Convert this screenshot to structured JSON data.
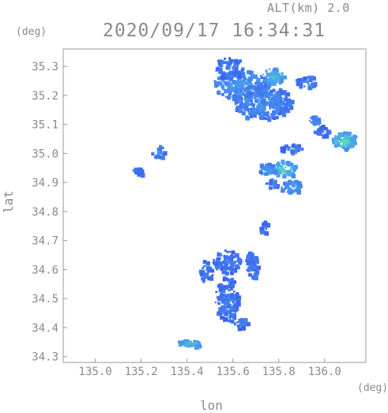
{
  "header": {
    "altitude": "ALT(km) 2.0",
    "timestamp": "2020/09/17 16:34:31"
  },
  "axes": {
    "y_unit": "(deg)",
    "x_unit": "(deg)",
    "xlabel": "lon",
    "ylabel": "lat"
  },
  "chart_data": {
    "type": "heatmap",
    "xlabel": "lon",
    "ylabel": "lat",
    "xlim": [
      134.86,
      136.18
    ],
    "ylim": [
      34.28,
      35.36
    ],
    "x_ticks": [
      "135.0",
      "135.2",
      "135.4",
      "135.6",
      "135.8",
      "136.0"
    ],
    "y_ticks": [
      "34.3",
      "34.4",
      "34.5",
      "34.6",
      "34.7",
      "34.8",
      "34.9",
      "35.0",
      "35.1",
      "35.2",
      "35.3"
    ],
    "colors": {
      "low": "#3a5cf0",
      "mid": "#4aa0f0",
      "high": "#5cf0a0"
    },
    "regions": [
      {
        "lon": 135.63,
        "lat": 35.24,
        "rlon": 0.12,
        "rlat": 0.05,
        "level": 0.4
      },
      {
        "lon": 135.72,
        "lat": 35.18,
        "rlon": 0.13,
        "rlat": 0.06,
        "level": 0.3
      },
      {
        "lon": 135.58,
        "lat": 35.3,
        "rlon": 0.06,
        "rlat": 0.04,
        "level": 0.2
      },
      {
        "lon": 135.77,
        "lat": 35.27,
        "rlon": 0.05,
        "rlat": 0.03,
        "level": 0.6
      },
      {
        "lon": 135.92,
        "lat": 35.25,
        "rlon": 0.05,
        "rlat": 0.02,
        "level": 0.3
      },
      {
        "lon": 136.08,
        "lat": 35.05,
        "rlon": 0.06,
        "rlat": 0.03,
        "level": 0.7
      },
      {
        "lon": 135.98,
        "lat": 35.08,
        "rlon": 0.03,
        "rlat": 0.02,
        "level": 0.2
      },
      {
        "lon": 135.95,
        "lat": 35.12,
        "rlon": 0.02,
        "rlat": 0.015,
        "level": 0.4
      },
      {
        "lon": 135.82,
        "lat": 34.95,
        "rlon": 0.05,
        "rlat": 0.03,
        "level": 0.7
      },
      {
        "lon": 135.74,
        "lat": 34.95,
        "rlon": 0.04,
        "rlat": 0.02,
        "level": 0.4
      },
      {
        "lon": 135.85,
        "lat": 34.89,
        "rlon": 0.05,
        "rlat": 0.02,
        "level": 0.5
      },
      {
        "lon": 135.77,
        "lat": 34.9,
        "rlon": 0.03,
        "rlat": 0.015,
        "level": 0.2
      },
      {
        "lon": 135.57,
        "lat": 34.5,
        "rlon": 0.05,
        "rlat": 0.08,
        "level": 0.2
      },
      {
        "lon": 135.57,
        "lat": 34.63,
        "rlon": 0.06,
        "rlat": 0.04,
        "level": 0.2
      },
      {
        "lon": 135.4,
        "lat": 34.35,
        "rlon": 0.07,
        "rlat": 0.012,
        "level": 0.6
      },
      {
        "lon": 135.27,
        "lat": 35.01,
        "rlon": 0.03,
        "rlat": 0.02,
        "level": 0.3
      },
      {
        "lon": 135.18,
        "lat": 34.94,
        "rlon": 0.02,
        "rlat": 0.015,
        "level": 0.2
      },
      {
        "lon": 135.85,
        "lat": 35.02,
        "rlon": 0.05,
        "rlat": 0.015,
        "level": 0.2
      },
      {
        "lon": 135.48,
        "lat": 34.6,
        "rlon": 0.03,
        "rlat": 0.04,
        "level": 0.2
      },
      {
        "lon": 135.68,
        "lat": 34.62,
        "rlon": 0.03,
        "rlat": 0.05,
        "level": 0.2
      },
      {
        "lon": 135.73,
        "lat": 34.75,
        "rlon": 0.02,
        "rlat": 0.02,
        "level": 0.2
      },
      {
        "lon": 135.63,
        "lat": 34.42,
        "rlon": 0.03,
        "rlat": 0.02,
        "level": 0.2
      }
    ]
  }
}
